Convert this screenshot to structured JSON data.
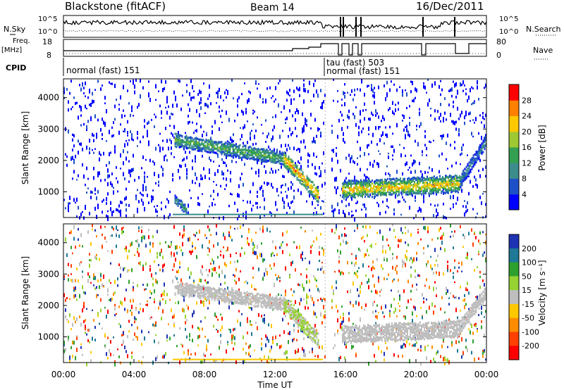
{
  "header": {
    "station": "Blackstone (fitACF)",
    "beam": "Beam 14",
    "date": "16/Dec/2011"
  },
  "strip_labels": {
    "nsky": "N.Sky",
    "nsky_ticks": [
      "10^5",
      "10^0"
    ],
    "nsearch": "N.Search",
    "nsearch_ticks": [
      "10^5",
      "10^0"
    ],
    "freq_line1": "Freq.",
    "freq_line2": "[MHz]",
    "freq_ticks": [
      "18",
      "8"
    ],
    "nave": "Nave",
    "nave_ticks": [
      "80",
      "0"
    ],
    "cpid": "CPID"
  },
  "cpid_segments": [
    {
      "label": "normal (fast) 151",
      "start_hour": 0.0
    },
    {
      "label": "tau (fast) 503",
      "start_hour": 14.85
    },
    {
      "label": "normal (fast) 151",
      "start_hour": 14.85
    }
  ],
  "colors": {
    "power": [
      "#0000ff",
      "#1e50c8",
      "#3c8c8c",
      "#32a050",
      "#a0c832",
      "#ffc800",
      "#ff8000",
      "#ff0000"
    ],
    "velocity": [
      "#1e32b4",
      "#1e7896",
      "#2ea02e",
      "#96d232",
      "#bebebe",
      "#ffc800",
      "#ff8c00",
      "#ff4000",
      "#ff0000"
    ]
  },
  "chart_data": [
    {
      "type": "heatmap",
      "panel": "power",
      "xlabel": "",
      "ylabel": "Slant Range [km]",
      "x_ticks": [
        "00:00",
        "04:00",
        "08:00",
        "12:00",
        "16:00",
        "20:00",
        "00:00"
      ],
      "xlim": [
        0,
        24
      ],
      "ylim": [
        180,
        4600
      ],
      "y_ticks": [
        1000,
        2000,
        3000,
        4000
      ],
      "colorbar": {
        "label": "Power [dB]",
        "ticks": [
          "4",
          "8",
          "12",
          "16",
          "20",
          "24",
          "28"
        ],
        "range": [
          0,
          30
        ]
      },
      "echo_bands": [
        {
          "start_hour": 6.3,
          "end_hour": 12.5,
          "range_start_km": 2700,
          "range_end_km": 2100,
          "width_km": 400,
          "power_db": 12
        },
        {
          "start_hour": 12.5,
          "end_hour": 14.5,
          "range_start_km": 2100,
          "range_end_km": 900,
          "width_km": 450,
          "power_db": 20
        },
        {
          "start_hour": 15.8,
          "end_hour": 22.5,
          "range_start_km": 1100,
          "range_end_km": 1300,
          "width_km": 500,
          "power_db": 18
        },
        {
          "start_hour": 22.5,
          "end_hour": 24.0,
          "range_start_km": 1400,
          "range_end_km": 2700,
          "width_km": 400,
          "power_db": 8
        },
        {
          "start_hour": 6.3,
          "end_hour": 7.0,
          "range_start_km": 800,
          "range_end_km": 450,
          "width_km": 250,
          "power_db": 10
        }
      ]
    },
    {
      "type": "heatmap",
      "panel": "velocity",
      "xlabel": "Time UT",
      "ylabel": "Slant Range [km]",
      "x_ticks": [
        "00:00",
        "04:00",
        "08:00",
        "12:00",
        "16:00",
        "20:00",
        "00:00"
      ],
      "xlim": [
        0,
        24
      ],
      "ylim": [
        180,
        4600
      ],
      "y_ticks": [
        1000,
        2000,
        3000,
        4000
      ],
      "colorbar": {
        "label": "Velocity [m s⁻¹]",
        "ticks": [
          "200",
          "100",
          "50",
          "15",
          "-15",
          "-50",
          "-100",
          "-200"
        ],
        "range": [
          -250,
          250
        ]
      },
      "echo_bands": [
        {
          "start_hour": 6.3,
          "end_hour": 12.5,
          "range_start_km": 2600,
          "range_end_km": 2100,
          "width_km": 400,
          "velocity": 0
        },
        {
          "start_hour": 12.5,
          "end_hour": 14.5,
          "range_start_km": 2100,
          "range_end_km": 900,
          "width_km": 450,
          "velocity": 30
        },
        {
          "start_hour": 15.8,
          "end_hour": 22.5,
          "range_start_km": 1100,
          "range_end_km": 1300,
          "width_km": 500,
          "velocity": 0
        },
        {
          "start_hour": 22.5,
          "end_hour": 24.0,
          "range_start_km": 1400,
          "range_end_km": 2500,
          "width_km": 400,
          "velocity": 0
        }
      ]
    }
  ]
}
